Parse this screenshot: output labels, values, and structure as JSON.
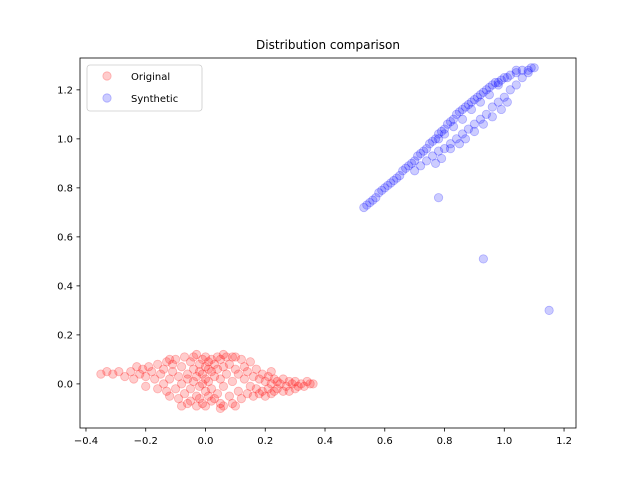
{
  "chart_data": {
    "type": "scatter",
    "title": "Distribution comparison",
    "xlabel": "",
    "ylabel": "",
    "xlim": [
      -0.42,
      1.24
    ],
    "ylim": [
      -0.18,
      1.33
    ],
    "xticks": [
      -0.4,
      -0.2,
      0.0,
      0.2,
      0.4,
      0.6,
      0.8,
      1.0,
      1.2
    ],
    "xtick_labels": [
      "−0.4",
      "−0.2",
      "0.0",
      "0.2",
      "0.4",
      "0.6",
      "0.8",
      "1.0",
      "1.2"
    ],
    "yticks": [
      0.0,
      0.2,
      0.4,
      0.6,
      0.8,
      1.0,
      1.2
    ],
    "ytick_labels": [
      "0.0",
      "0.2",
      "0.4",
      "0.6",
      "0.8",
      "1.0",
      "1.2"
    ],
    "grid": false,
    "legend_position": "top-left",
    "series": [
      {
        "name": "Original",
        "color": "#ff0000",
        "alpha": 0.2,
        "points": [
          [
            -0.35,
            0.04
          ],
          [
            -0.33,
            0.05
          ],
          [
            -0.31,
            0.04
          ],
          [
            -0.29,
            0.05
          ],
          [
            -0.27,
            0.03
          ],
          [
            -0.25,
            0.05
          ],
          [
            -0.24,
            0.02
          ],
          [
            -0.22,
            0.04
          ],
          [
            -0.21,
            0.06
          ],
          [
            -0.2,
            -0.01
          ],
          [
            -0.19,
            0.07
          ],
          [
            -0.18,
            0.05
          ],
          [
            -0.17,
            0.02
          ],
          [
            -0.16,
            -0.02
          ],
          [
            -0.16,
            0.08
          ],
          [
            -0.15,
            0.04
          ],
          [
            -0.14,
            0.0
          ],
          [
            -0.14,
            0.06
          ],
          [
            -0.13,
            -0.03
          ],
          [
            -0.13,
            0.09
          ],
          [
            -0.12,
            0.02
          ],
          [
            -0.12,
            -0.05
          ],
          [
            -0.11,
            0.05
          ],
          [
            -0.11,
            0.08
          ],
          [
            -0.1,
            -0.02
          ],
          [
            -0.1,
            0.1
          ],
          [
            -0.09,
            0.03
          ],
          [
            -0.09,
            -0.06
          ],
          [
            -0.08,
            0.07
          ],
          [
            -0.08,
            0.0
          ],
          [
            -0.07,
            -0.04
          ],
          [
            -0.07,
            0.11
          ],
          [
            -0.06,
            0.04
          ],
          [
            -0.06,
            -0.08
          ],
          [
            -0.06,
            0.02
          ],
          [
            -0.05,
            0.09
          ],
          [
            -0.05,
            -0.02
          ],
          [
            -0.05,
            -0.07
          ],
          [
            -0.04,
            0.06
          ],
          [
            -0.04,
            0.01
          ],
          [
            -0.04,
            0.11
          ],
          [
            -0.03,
            -0.05
          ],
          [
            -0.03,
            0.03
          ],
          [
            -0.03,
            -0.09
          ],
          [
            -0.02,
            0.08
          ],
          [
            -0.02,
            -0.01
          ],
          [
            -0.02,
            0.05
          ],
          [
            -0.02,
            -0.06
          ],
          [
            -0.01,
            0.1
          ],
          [
            -0.01,
            0.0
          ],
          [
            -0.01,
            -0.08
          ],
          [
            -0.01,
            0.04
          ],
          [
            0.0,
            0.07
          ],
          [
            0.0,
            -0.03
          ],
          [
            0.0,
            0.11
          ],
          [
            0.0,
            0.02
          ],
          [
            0.0,
            -0.09
          ],
          [
            0.01,
            0.06
          ],
          [
            0.01,
            -0.05
          ],
          [
            0.01,
            0.09
          ],
          [
            0.01,
            0.01
          ],
          [
            0.02,
            -0.07
          ],
          [
            0.02,
            0.05
          ],
          [
            0.02,
            0.1
          ],
          [
            0.02,
            -0.02
          ],
          [
            0.03,
            0.08
          ],
          [
            0.03,
            -0.06
          ],
          [
            0.03,
            0.03
          ],
          [
            0.04,
            0.11
          ],
          [
            0.04,
            -0.04
          ],
          [
            0.04,
            0.06
          ],
          [
            0.05,
            -0.08
          ],
          [
            0.05,
            0.02
          ],
          [
            0.05,
            0.1
          ],
          [
            0.06,
            -0.01
          ],
          [
            0.06,
            0.07
          ],
          [
            0.06,
            -0.09
          ],
          [
            0.07,
            0.04
          ],
          [
            0.07,
            0.11
          ],
          [
            0.08,
            -0.05
          ],
          [
            0.08,
            0.08
          ],
          [
            0.09,
            0.01
          ],
          [
            0.09,
            -0.08
          ],
          [
            0.1,
            0.06
          ],
          [
            0.1,
            0.11
          ],
          [
            0.11,
            -0.03
          ],
          [
            0.11,
            0.04
          ],
          [
            0.12,
            0.1
          ],
          [
            0.12,
            -0.06
          ],
          [
            0.13,
            0.02
          ],
          [
            0.13,
            0.07
          ],
          [
            0.14,
            -0.04
          ],
          [
            0.14,
            0.05
          ],
          [
            0.15,
            -0.01
          ],
          [
            0.15,
            0.09
          ],
          [
            0.16,
            0.03
          ],
          [
            0.16,
            -0.05
          ],
          [
            0.17,
            0.06
          ],
          [
            0.17,
            -0.02
          ],
          [
            0.18,
            0.02
          ],
          [
            0.18,
            -0.04
          ],
          [
            0.19,
            0.04
          ],
          [
            0.19,
            -0.03
          ],
          [
            0.2,
            0.01
          ],
          [
            0.2,
            -0.05
          ],
          [
            0.21,
            0.03
          ],
          [
            0.21,
            -0.02
          ],
          [
            0.22,
            0.0
          ],
          [
            0.22,
            -0.04
          ],
          [
            0.23,
            0.02
          ],
          [
            0.23,
            -0.03
          ],
          [
            0.24,
            0.01
          ],
          [
            0.24,
            -0.02
          ],
          [
            0.25,
            0.0
          ],
          [
            0.26,
            -0.03
          ],
          [
            0.26,
            0.02
          ],
          [
            0.27,
            -0.01
          ],
          [
            0.28,
            0.01
          ],
          [
            0.28,
            -0.03
          ],
          [
            0.29,
            0.0
          ],
          [
            0.3,
            -0.02
          ],
          [
            0.3,
            0.01
          ],
          [
            0.31,
            -0.01
          ],
          [
            0.32,
            0.0
          ],
          [
            0.33,
            -0.01
          ],
          [
            0.34,
            0.01
          ],
          [
            0.35,
            0.0
          ],
          [
            0.36,
            0.0
          ],
          [
            -0.03,
            0.12
          ],
          [
            0.06,
            0.12
          ],
          [
            0.09,
            0.11
          ],
          [
            -0.08,
            -0.09
          ],
          [
            0.05,
            -0.1
          ],
          [
            0.1,
            -0.09
          ],
          [
            -0.12,
            0.1
          ],
          [
            -0.2,
            0.03
          ],
          [
            -0.23,
            0.07
          ],
          [
            0.22,
            0.05
          ]
        ]
      },
      {
        "name": "Synthetic",
        "color": "#0000ff",
        "alpha": 0.2,
        "points": [
          [
            0.53,
            0.72
          ],
          [
            0.54,
            0.73
          ],
          [
            0.55,
            0.74
          ],
          [
            0.56,
            0.75
          ],
          [
            0.57,
            0.76
          ],
          [
            0.58,
            0.78
          ],
          [
            0.59,
            0.79
          ],
          [
            0.6,
            0.8
          ],
          [
            0.61,
            0.81
          ],
          [
            0.62,
            0.82
          ],
          [
            0.63,
            0.83
          ],
          [
            0.64,
            0.84
          ],
          [
            0.65,
            0.85
          ],
          [
            0.66,
            0.87
          ],
          [
            0.67,
            0.88
          ],
          [
            0.68,
            0.89
          ],
          [
            0.69,
            0.9
          ],
          [
            0.7,
            0.91
          ],
          [
            0.71,
            0.93
          ],
          [
            0.72,
            0.94
          ],
          [
            0.73,
            0.95
          ],
          [
            0.74,
            0.96
          ],
          [
            0.75,
            0.98
          ],
          [
            0.76,
            0.99
          ],
          [
            0.77,
            1.0
          ],
          [
            0.78,
            1.02
          ],
          [
            0.79,
            1.03
          ],
          [
            0.8,
            1.04
          ],
          [
            0.81,
            1.06
          ],
          [
            0.82,
            1.07
          ],
          [
            0.83,
            1.08
          ],
          [
            0.84,
            1.1
          ],
          [
            0.85,
            1.11
          ],
          [
            0.86,
            1.12
          ],
          [
            0.87,
            1.13
          ],
          [
            0.88,
            1.14
          ],
          [
            0.89,
            1.15
          ],
          [
            0.9,
            1.16
          ],
          [
            0.91,
            1.17
          ],
          [
            0.92,
            1.18
          ],
          [
            0.93,
            1.19
          ],
          [
            0.94,
            1.2
          ],
          [
            0.95,
            1.21
          ],
          [
            0.96,
            1.22
          ],
          [
            0.97,
            1.23
          ],
          [
            0.98,
            1.23
          ],
          [
            0.99,
            1.24
          ],
          [
            1.0,
            1.25
          ],
          [
            1.02,
            1.26
          ],
          [
            1.04,
            1.27
          ],
          [
            1.06,
            1.28
          ],
          [
            1.08,
            1.28
          ],
          [
            1.09,
            1.29
          ],
          [
            1.1,
            1.29
          ],
          [
            0.74,
            0.91
          ],
          [
            0.76,
            0.93
          ],
          [
            0.78,
            0.95
          ],
          [
            0.8,
            0.96
          ],
          [
            0.82,
            0.98
          ],
          [
            0.84,
            1.0
          ],
          [
            0.86,
            1.02
          ],
          [
            0.88,
            1.04
          ],
          [
            0.9,
            1.06
          ],
          [
            0.92,
            1.08
          ],
          [
            0.94,
            1.1
          ],
          [
            0.96,
            1.13
          ],
          [
            0.98,
            1.15
          ],
          [
            1.0,
            1.17
          ],
          [
            1.02,
            1.2
          ],
          [
            1.04,
            1.22
          ],
          [
            1.06,
            1.25
          ],
          [
            1.08,
            1.27
          ],
          [
            0.78,
            1.0
          ],
          [
            0.8,
            1.02
          ],
          [
            0.83,
            1.05
          ],
          [
            0.86,
            1.08
          ],
          [
            0.89,
            1.12
          ],
          [
            0.92,
            1.15
          ],
          [
            0.95,
            1.18
          ],
          [
            0.98,
            1.22
          ],
          [
            1.01,
            1.25
          ],
          [
            1.04,
            1.28
          ],
          [
            0.82,
            0.96
          ],
          [
            0.85,
            0.98
          ],
          [
            0.87,
            1.0
          ],
          [
            0.9,
            1.03
          ],
          [
            0.93,
            1.06
          ],
          [
            0.96,
            1.09
          ],
          [
            0.99,
            1.12
          ],
          [
            1.01,
            1.15
          ],
          [
            0.7,
            0.87
          ],
          [
            0.72,
            0.89
          ],
          [
            0.77,
            0.9
          ],
          [
            0.79,
            0.92
          ],
          [
            0.78,
            0.76
          ],
          [
            0.93,
            0.51
          ],
          [
            1.15,
            0.3
          ]
        ]
      }
    ]
  }
}
